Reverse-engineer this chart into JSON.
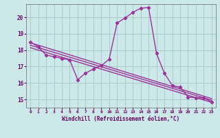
{
  "title": "",
  "xlabel": "Windchill (Refroidissement éolien,°C)",
  "ylabel": "",
  "bg_color": "#cce8e8",
  "grid_color": "#aacccc",
  "line_color": "#993399",
  "xlim": [
    -0.5,
    23.5
  ],
  "ylim": [
    14.5,
    20.8
  ],
  "yticks": [
    15,
    16,
    17,
    18,
    19,
    20
  ],
  "xticks": [
    0,
    1,
    2,
    3,
    4,
    5,
    6,
    7,
    8,
    9,
    10,
    11,
    12,
    13,
    14,
    15,
    16,
    17,
    18,
    19,
    20,
    21,
    22,
    23
  ],
  "series1_x": [
    0,
    1,
    2,
    3,
    4,
    5,
    6,
    7,
    8,
    9,
    10,
    11,
    12,
    13,
    14,
    15,
    16,
    17,
    18,
    19,
    20,
    21,
    22,
    23
  ],
  "series1_y": [
    18.5,
    18.2,
    17.7,
    17.6,
    17.5,
    17.4,
    16.2,
    16.6,
    16.85,
    17.05,
    17.45,
    19.65,
    19.95,
    20.3,
    20.55,
    20.6,
    17.8,
    16.6,
    15.85,
    15.75,
    15.15,
    15.1,
    15.1,
    14.85
  ],
  "series2_x": [
    0,
    23
  ],
  "series2_y": [
    18.45,
    15.05
  ],
  "series3_x": [
    0,
    23
  ],
  "series3_y": [
    18.3,
    14.95
  ],
  "series4_x": [
    0,
    23
  ],
  "series4_y": [
    18.15,
    14.82
  ]
}
